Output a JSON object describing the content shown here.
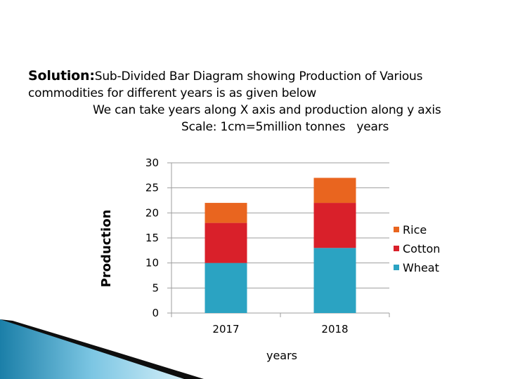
{
  "heading": {
    "solution_label": "Solution:",
    "line1_rest": "Sub-Divided Bar Diagram showing Production of Various",
    "line2": "commodities for different years is as given below",
    "line3": "We can take years along X axis and production along y axis",
    "scale_text": "Scale: 1cm=5million tonnes",
    "scale_suffix": "years"
  },
  "colors": {
    "wheat": "#2ba3c2",
    "cotton": "#d9202a",
    "rice": "#e9651f",
    "axis": "#9e9e9e"
  },
  "chart_data": {
    "type": "bar",
    "stacked": true,
    "categories": [
      "2017",
      "2018"
    ],
    "series": [
      {
        "name": "Wheat",
        "values": [
          10,
          13
        ]
      },
      {
        "name": "Cotton",
        "values": [
          8,
          9
        ]
      },
      {
        "name": "Rice",
        "values": [
          4,
          5
        ]
      }
    ],
    "legend_order": [
      "Rice",
      "Cotton",
      "Wheat"
    ],
    "title": "",
    "xlabel": "years",
    "ylabel": "Production",
    "ylim": [
      0,
      30
    ],
    "yticks": [
      "0",
      "5",
      "10",
      "15",
      "20",
      "25",
      "30"
    ],
    "legend_position": "right"
  }
}
